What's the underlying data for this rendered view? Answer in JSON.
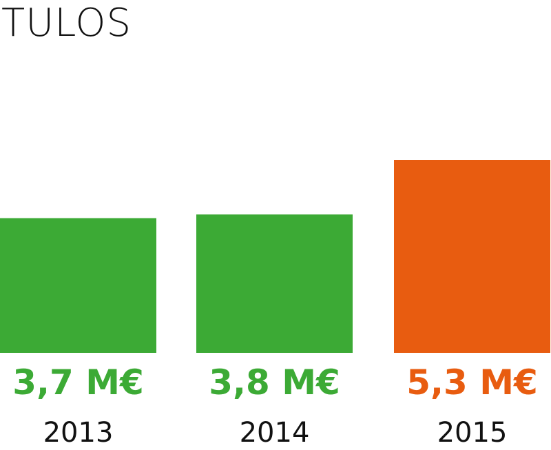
{
  "chart_data": {
    "type": "bar",
    "title": "TULOS",
    "categories": [
      "2013",
      "2014",
      "2015"
    ],
    "values": [
      3.7,
      3.8,
      5.3
    ],
    "value_labels": [
      "3,7 M€",
      "3,8 M€",
      "5,3 M€"
    ],
    "unit": "M€",
    "colors": [
      "#3caa35",
      "#3caa35",
      "#e85c10"
    ],
    "ylim": [
      0,
      5.3
    ],
    "grid": false,
    "legend": "none"
  }
}
